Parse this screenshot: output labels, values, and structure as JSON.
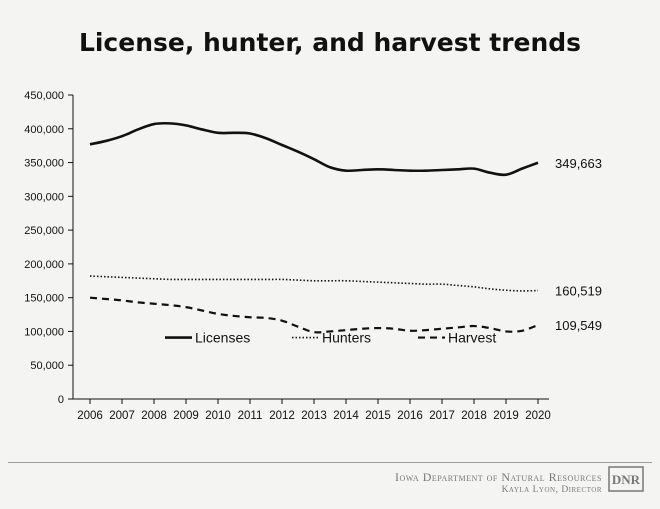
{
  "chart_data": {
    "type": "line",
    "title": "License, hunter, and harvest trends",
    "xlabel": "",
    "ylabel": "",
    "x": [
      2006,
      2006.5,
      2007,
      2007.5,
      2008,
      2008.5,
      2009,
      2009.5,
      2010,
      2010.5,
      2011,
      2011.5,
      2012,
      2012.5,
      2013,
      2013.5,
      2014,
      2014.5,
      2015,
      2015.5,
      2016,
      2016.5,
      2017,
      2017.5,
      2018,
      2018.5,
      2019,
      2019.5,
      2020
    ],
    "x_ticks": [
      "2006",
      "2007",
      "2008",
      "2009",
      "2010",
      "2011",
      "2012",
      "2013",
      "2014",
      "2015",
      "2016",
      "2017",
      "2018",
      "2019",
      "2020"
    ],
    "y_ticks": [
      "0",
      "50,000",
      "100,000",
      "150,000",
      "200,000",
      "250,000",
      "300,000",
      "350,000",
      "400,000",
      "450,000"
    ],
    "ylim": [
      0,
      450000
    ],
    "grid": false,
    "legend_position": "inside-bottom",
    "series": [
      {
        "name": "Licenses",
        "style": "solid",
        "end_label": "349,663",
        "values": [
          377000,
          382000,
          389000,
          399000,
          407000,
          408000,
          405000,
          399000,
          394000,
          394000,
          393000,
          386000,
          376000,
          366000,
          355000,
          343000,
          338000,
          339000,
          340000,
          339000,
          338000,
          338000,
          339000,
          340000,
          341000,
          335000,
          332000,
          341000,
          349663
        ]
      },
      {
        "name": "Hunters",
        "style": "dotted",
        "end_label": "160,519",
        "values": [
          182000,
          181000,
          180000,
          179000,
          178000,
          177000,
          177000,
          177000,
          177000,
          177000,
          177000,
          177000,
          177000,
          176000,
          175000,
          175000,
          175000,
          174000,
          173000,
          172000,
          171000,
          170000,
          170000,
          168000,
          166000,
          163000,
          161000,
          160000,
          160519
        ]
      },
      {
        "name": "Harvest",
        "style": "dashed",
        "end_label": "109,549",
        "values": [
          150000,
          148000,
          146000,
          143000,
          141000,
          139000,
          136000,
          131000,
          126000,
          123000,
          121000,
          120000,
          116000,
          107000,
          99000,
          100000,
          102000,
          104000,
          105000,
          104000,
          101000,
          102000,
          104000,
          106000,
          108000,
          105000,
          100000,
          101000,
          109549
        ]
      }
    ]
  },
  "footer": {
    "org": "Iowa Department of Natural Resources",
    "director": "Kayla Lyon, Director",
    "logo_text": "DNR"
  },
  "colors": {
    "background": "#f4f4f2",
    "ink": "#111111",
    "footer": "#777777"
  }
}
